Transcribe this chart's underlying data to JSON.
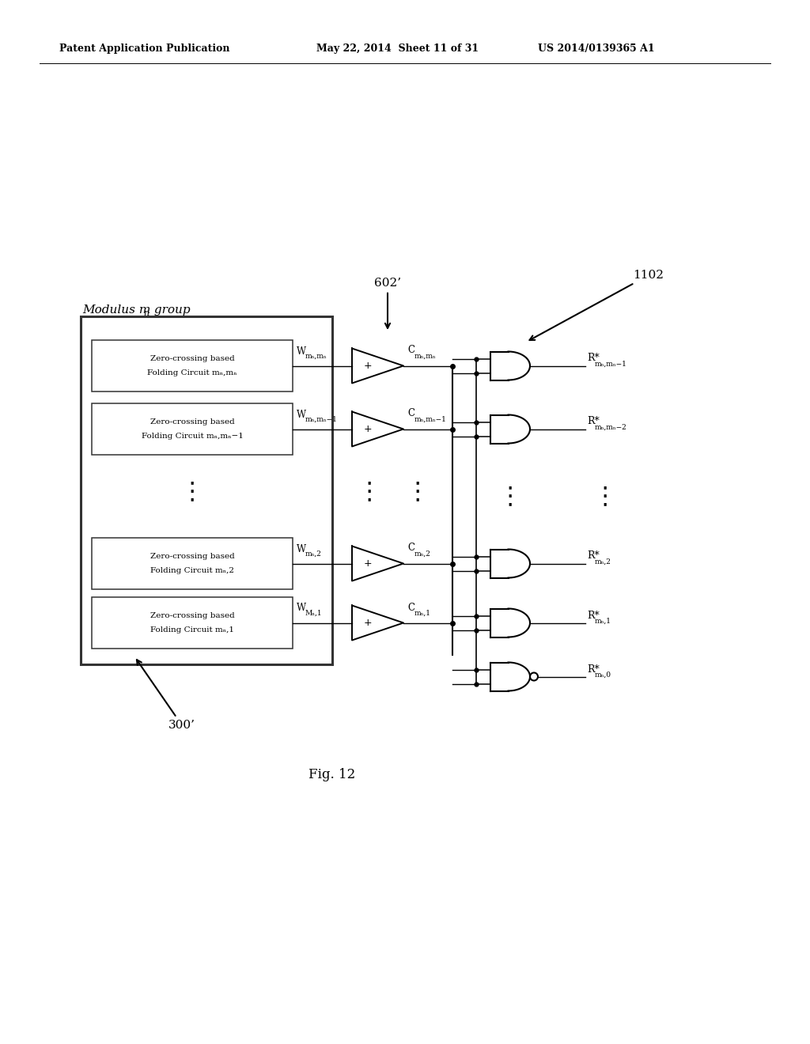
{
  "bg_color": "#ffffff",
  "header_left": "Patent Application Publication",
  "header_mid": "May 22, 2014  Sheet 11 of 31",
  "header_right": "US 2014/0139365 A1",
  "fig_label": "Fig. 12",
  "label_602": "602’",
  "label_1102": "1102",
  "label_300": "300’",
  "group_label": "Modulus m",
  "group_label_sub": "n",
  "group_label_rest": " group",
  "rows": [
    {
      "box_line1": "Zero-crossing based",
      "box_line2": "Folding Circuit mₙ,mₙ",
      "W_main": "W",
      "W_sub": "mₙ,mₙ",
      "C_main": "C",
      "C_sub": "mₙ,mₙ",
      "R_main": "R*",
      "R_sub1": "mₙ,",
      "R_sub2": "mₙ",
      "R_sub3": "−1"
    },
    {
      "box_line1": "Zero-crossing based",
      "box_line2": "Folding Circuit mₙ,mₙ−1",
      "W_main": "W",
      "W_sub": "mₙ,mₙ−1",
      "C_main": "C",
      "C_sub": "mₙ,mₙ−1",
      "R_main": "R*",
      "R_sub1": "mₙ,",
      "R_sub2": "mₙ",
      "R_sub3": "−2"
    },
    {
      "box_line1": "Zero-crossing based",
      "box_line2": "Folding Circuit mₙ,2",
      "W_main": "W",
      "W_sub": "mₙ,2",
      "C_main": "C",
      "C_sub": "mₙ,2",
      "R_main": "R*",
      "R_sub1": "mₙ,",
      "R_sub2": "2",
      "R_sub3": ""
    },
    {
      "box_line1": "Zero-crossing based",
      "box_line2": "Folding Circuit mₙ,1",
      "W_main": "W",
      "W_sub": "Mₙ,1",
      "C_main": "C",
      "C_sub": "mₙ,1",
      "R_main": "R*",
      "R_sub1": "mₙ,",
      "R_sub2": "1",
      "R_sub3": ""
    }
  ],
  "extra_R_main": "R*",
  "extra_R_sub": "mₙ,0"
}
